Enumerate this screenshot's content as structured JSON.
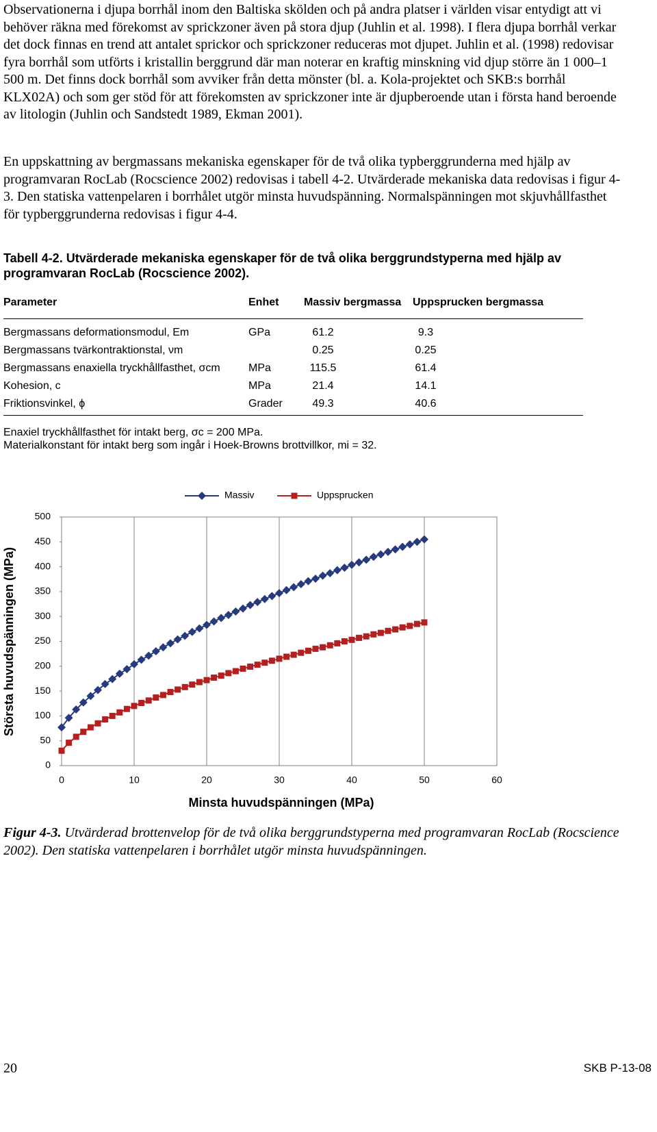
{
  "paragraphs": [
    "Observationerna i djupa borrhål inom den Baltiska skölden och på andra platser i världen visar entydigt att vi behöver räkna med förekomst av sprickzoner även på stora djup (Juhlin et al. 1998). I flera djupa borrhål verkar det dock finnas en trend att antalet sprickor och sprickzoner reduceras mot djupet. Juhlin et al. (1998) redovisar fyra borrhål som utförts i kristallin berggrund där man noterar en kraftig minskning vid djup större än 1 000–1 500 m. Det finns dock borrhål som avviker från detta mönster (bl. a. Kola-projektet och SKB:s borrhål KLX02A) och som ger stöd för att förekomsten av sprickzoner inte är djupberoende utan i första hand beroende av litologin (Juhlin och Sandstedt 1989, Ekman 2001).",
    "En uppskattning av bergmassans mekaniska egenskaper för de två olika typberggrunderna med hjälp av programvaran RocLab (Rocscience 2002) redovisas i tabell 4-2. Utvärderade mekaniska data redovisas i figur 4-3. Den statiska vattenpelaren i borrhålet utgör minsta huvudspänning. Normalspänningen mot skjuvhållfasthet för typberggrunderna redovisas i figur 4-4."
  ],
  "table": {
    "caption": "Tabell 4-2. Utvärderade mekaniska egenskaper för de två olika berggrundstyperna med hjälp av programvaran RocLab (Rocscience 2002).",
    "header": [
      "Parameter",
      "Enhet",
      "Massiv bergmassa",
      "Uppsprucken bergmassa"
    ],
    "rows": [
      [
        "Bergmassans deformationsmodul, Em",
        "GPa",
        61.2,
        9.3
      ],
      [
        "Bergmassans tvärkontraktionstal, νm",
        null,
        0.25,
        0.25
      ],
      [
        "Bergmassans enaxiella tryckhållfasthet, σcm",
        "MPa",
        115.5,
        61.4
      ],
      [
        "Kohesion, c",
        "MPa",
        21.4,
        14.1
      ],
      [
        "Friktionsvinkel, ϕ",
        "Grader",
        49.3,
        40.6
      ]
    ],
    "notes": [
      "Enaxiel tryckhållfasthet för intakt berg, σc = 200 MPa.",
      "Materialkonstant för intakt berg som ingår i Hoek-Browns brottvillkor, mi = 32."
    ]
  },
  "chart_data": {
    "type": "line",
    "x_label": "Minsta huvudspänningen (MPa)",
    "y_label": "Största huvudspänningen (MPa)",
    "x": [
      0,
      1,
      2,
      3,
      4,
      5,
      6,
      7,
      8,
      9,
      10,
      11,
      12,
      13,
      14,
      15,
      16,
      17,
      18,
      19,
      20,
      21,
      22,
      23,
      24,
      25,
      26,
      27,
      28,
      29,
      30,
      31,
      32,
      33,
      34,
      35,
      36,
      37,
      38,
      39,
      40,
      41,
      42,
      43,
      44,
      45,
      46,
      47,
      48,
      49,
      50
    ],
    "series": [
      {
        "name": "Massiv",
        "color": "#283a7e",
        "marker": "diamond",
        "values": [
          77,
          96,
          113,
          127,
          140,
          152,
          164,
          174,
          185,
          194,
          204,
          213,
          221,
          230,
          238,
          246,
          254,
          261,
          269,
          276,
          283,
          290,
          297,
          303,
          310,
          316,
          323,
          329,
          335,
          341,
          347,
          353,
          359,
          365,
          371,
          376,
          382,
          387,
          393,
          398,
          404,
          409,
          414,
          420,
          425,
          430,
          435,
          440,
          445,
          450,
          455
        ]
      },
      {
        "name": "Uppsprucken",
        "color": "#b3201f",
        "marker": "square",
        "values": [
          30,
          46,
          58,
          68,
          77,
          85,
          93,
          100,
          107,
          114,
          120,
          126,
          131,
          137,
          142,
          148,
          153,
          158,
          163,
          168,
          172,
          177,
          181,
          186,
          190,
          195,
          199,
          203,
          207,
          211,
          215,
          219,
          223,
          227,
          231,
          235,
          238,
          242,
          246,
          250,
          253,
          257,
          260,
          264,
          267,
          271,
          274,
          278,
          281,
          285,
          288
        ]
      }
    ],
    "xlim": [
      0,
      60
    ],
    "xticks": [
      0,
      10,
      20,
      30,
      40,
      50,
      60
    ],
    "ylim": [
      0,
      500
    ],
    "yticks": [
      0,
      50,
      100,
      150,
      200,
      250,
      300,
      350,
      400,
      450,
      500
    ],
    "xgrid": true,
    "legend": "top"
  },
  "figure_caption": {
    "label": "Figur 4-3.",
    "text": "Utvärderad brottenvelop för de två olika berggrundstyperna med programvaran RocLab (Rocscience 2002). Den statiska vattenpelaren i borrhålet utgör minsta huvudspänningen."
  },
  "footer": {
    "page": 20,
    "report": "SKB P-13-08"
  }
}
